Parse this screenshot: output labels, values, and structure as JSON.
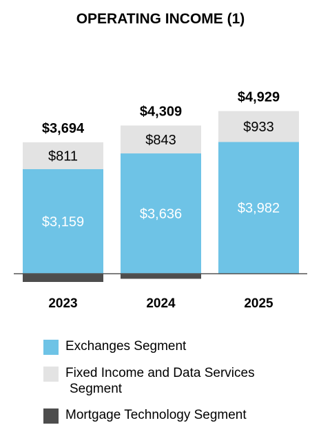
{
  "chart_data": {
    "type": "bar",
    "stacked": true,
    "title": "OPERATING INCOME (1)",
    "categories": [
      "2023",
      "2024",
      "2025"
    ],
    "series": [
      {
        "name": "Exchanges Segment",
        "color": "#6ec3e6",
        "values": [
          3159,
          3636,
          3982
        ],
        "labels": [
          "$3,159",
          "$3,636",
          "$3,982"
        ]
      },
      {
        "name": "Fixed Income and Data Services Segment",
        "color": "#e3e3e3",
        "values": [
          811,
          843,
          933
        ],
        "labels": [
          "$811",
          "$843",
          "$933"
        ]
      },
      {
        "name": "Mortgage Technology Segment",
        "color": "#4d4d4d",
        "values": [
          -276,
          -170,
          14
        ],
        "labels": [
          "",
          "",
          ""
        ]
      }
    ],
    "totals": [
      3694,
      4309,
      4929
    ],
    "total_labels": [
      "$3,694",
      "$4,309",
      "$4,929"
    ],
    "legend_position": "bottom",
    "grid": false
  },
  "legend": {
    "items": [
      {
        "label": "Exchanges Segment",
        "color": "#6ec3e6"
      },
      {
        "label_line1": "Fixed Income and Data Services",
        "label_line2": "Segment",
        "color": "#e3e3e3"
      },
      {
        "label": "Mortgage Technology Segment",
        "color": "#4d4d4d"
      }
    ]
  }
}
